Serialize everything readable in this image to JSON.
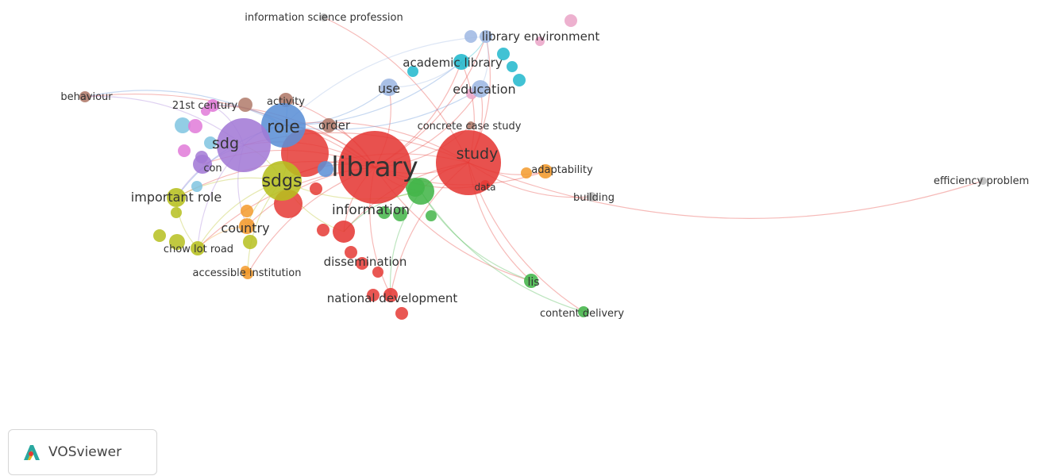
{
  "network": {
    "colors": {
      "red": "#e53935",
      "green": "#43b549",
      "blue": "#5b8fd6",
      "purple": "#a37ad6",
      "yellow": "#b6bf1f",
      "cyan": "#20b7cc",
      "orange": "#f39a2b",
      "pink": "#e07ad8",
      "brown": "#b07a6a",
      "skyblue": "#7fc4e0",
      "lightpink": "#eaa3c7",
      "lightblue": "#9db7e3",
      "grey": "#bbbbbb"
    },
    "nodes": [
      {
        "id": "library",
        "label": "library",
        "color": "red",
        "weight": 10,
        "font": 34
      },
      {
        "id": "study",
        "label": "study",
        "color": "red",
        "weight": 8,
        "font": 19
      },
      {
        "id": "sdgs",
        "label": "sdgs",
        "color": "yellow",
        "weight": 6,
        "font": 22
      },
      {
        "id": "role",
        "label": "role",
        "color": "blue",
        "weight": 6,
        "font": 22
      },
      {
        "id": "sdg",
        "label": "sdg",
        "color": "purple",
        "weight": 6,
        "font": 19
      },
      {
        "id": "information",
        "label": "information",
        "color": "green",
        "weight": 5,
        "font": 17
      },
      {
        "id": "important-role",
        "label": "important role",
        "color": "yellow",
        "weight": 3,
        "font": 16
      },
      {
        "id": "country",
        "label": "country",
        "color": "orange",
        "weight": 3,
        "font": 16
      },
      {
        "id": "education",
        "label": "education",
        "color": "lightblue",
        "weight": 3,
        "font": 16
      },
      {
        "id": "use",
        "label": "use",
        "color": "lightblue",
        "weight": 3,
        "font": 16
      },
      {
        "id": "dissemination",
        "label": "dissemination",
        "color": "red",
        "weight": 2,
        "font": 15
      },
      {
        "id": "national-development",
        "label": "national development",
        "color": "red",
        "weight": 2,
        "font": 15
      },
      {
        "id": "academic-library",
        "label": "academic library",
        "color": "cyan",
        "weight": 2,
        "font": 15
      },
      {
        "id": "library-environment",
        "label": "library environment",
        "color": "lightblue",
        "weight": 2,
        "font": 15
      },
      {
        "id": "concrete-case-study",
        "label": "concrete case study",
        "color": "brown",
        "weight": 1,
        "font": 13
      },
      {
        "id": "order",
        "label": "order",
        "color": "brown",
        "weight": 2,
        "font": 15
      },
      {
        "id": "activity",
        "label": "activity",
        "color": "brown",
        "weight": 2,
        "font": 13
      },
      {
        "id": "21st-century",
        "label": "21st century",
        "color": "pink",
        "weight": 2,
        "font": 13
      },
      {
        "id": "behaviour",
        "label": "behaviour",
        "color": "brown",
        "weight": 1,
        "font": 13
      },
      {
        "id": "information-science-profession",
        "label": "information science profession",
        "color": "grey",
        "weight": 1,
        "font": 13
      },
      {
        "id": "adaptability",
        "label": "adaptability",
        "color": "orange",
        "weight": 2,
        "font": 13
      },
      {
        "id": "building",
        "label": "building",
        "color": "grey",
        "weight": 1,
        "font": 13
      },
      {
        "id": "data",
        "label": "data",
        "color": "red",
        "weight": 1,
        "font": 12
      },
      {
        "id": "efficiency-problem",
        "label": "efficiency problem",
        "color": "grey",
        "weight": 1,
        "font": 13
      },
      {
        "id": "lis",
        "label": "lis",
        "color": "green",
        "weight": 2,
        "font": 14
      },
      {
        "id": "content-delivery",
        "label": "content delivery",
        "color": "green",
        "weight": 1,
        "font": 13
      },
      {
        "id": "chow-lot-road",
        "label": "chow lot road",
        "color": "yellow",
        "weight": 2,
        "font": 13
      },
      {
        "id": "accessible-institution",
        "label": "accessible institution",
        "color": "orange",
        "weight": 1,
        "font": 13
      },
      {
        "id": "con",
        "label": "con",
        "color": "purple",
        "weight": 2,
        "font": 13
      }
    ],
    "extras": [
      {
        "color": "red"
      },
      {
        "color": "red"
      },
      {
        "color": "red"
      },
      {
        "color": "red"
      },
      {
        "color": "red"
      },
      {
        "color": "red"
      },
      {
        "color": "red"
      },
      {
        "color": "red"
      },
      {
        "color": "red"
      },
      {
        "color": "green"
      },
      {
        "color": "green"
      },
      {
        "color": "green"
      },
      {
        "color": "green"
      },
      {
        "color": "cyan"
      },
      {
        "color": "cyan"
      },
      {
        "color": "cyan"
      },
      {
        "color": "cyan"
      },
      {
        "color": "skyblue"
      },
      {
        "color": "skyblue"
      },
      {
        "color": "skyblue"
      },
      {
        "color": "pink"
      },
      {
        "color": "pink"
      },
      {
        "color": "pink"
      },
      {
        "color": "yellow"
      },
      {
        "color": "yellow"
      },
      {
        "color": "yellow"
      },
      {
        "color": "yellow"
      },
      {
        "color": "orange"
      },
      {
        "color": "orange"
      },
      {
        "color": "orange"
      },
      {
        "color": "lightpink"
      },
      {
        "color": "lightpink"
      },
      {
        "color": "lightpink"
      },
      {
        "color": "purple"
      },
      {
        "color": "blue"
      },
      {
        "color": "brown"
      },
      {
        "color": "lightblue"
      }
    ],
    "edges": [
      [
        "library",
        "study"
      ],
      [
        "library",
        "sdgs"
      ],
      [
        "library",
        "role"
      ],
      [
        "library",
        "sdg"
      ],
      [
        "library",
        "information"
      ],
      [
        "library",
        "important-role"
      ],
      [
        "library",
        "country"
      ],
      [
        "library",
        "education"
      ],
      [
        "library",
        "use"
      ],
      [
        "library",
        "dissemination"
      ],
      [
        "library",
        "national-development"
      ],
      [
        "library",
        "academic-library"
      ],
      [
        "library",
        "library-environment"
      ],
      [
        "library",
        "order"
      ],
      [
        "library",
        "activity"
      ],
      [
        "library",
        "21st-century"
      ],
      [
        "library",
        "behaviour"
      ],
      [
        "library",
        "adaptability"
      ],
      [
        "library",
        "data"
      ],
      [
        "library",
        "lis"
      ],
      [
        "library",
        "chow-lot-road"
      ],
      [
        "library",
        "accessible-institution"
      ],
      [
        "library",
        "con"
      ],
      [
        "library",
        "concrete-case-study"
      ],
      [
        "study",
        "sdgs"
      ],
      [
        "study",
        "role"
      ],
      [
        "study",
        "sdg"
      ],
      [
        "study",
        "efficiency-problem"
      ],
      [
        "study",
        "adaptability"
      ],
      [
        "study",
        "building"
      ],
      [
        "study",
        "lis"
      ],
      [
        "study",
        "content-delivery"
      ],
      [
        "study",
        "education"
      ],
      [
        "study",
        "academic-library"
      ],
      [
        "study",
        "library-environment"
      ],
      [
        "study",
        "information-science-profession"
      ],
      [
        "study",
        "national-development"
      ],
      [
        "study",
        "dissemination"
      ],
      [
        "study",
        "information"
      ],
      [
        "sdgs",
        "role"
      ],
      [
        "sdgs",
        "sdg"
      ],
      [
        "sdgs",
        "information"
      ],
      [
        "sdgs",
        "important-role"
      ],
      [
        "sdgs",
        "country"
      ],
      [
        "sdgs",
        "chow-lot-road"
      ],
      [
        "sdgs",
        "accessible-institution"
      ],
      [
        "sdgs",
        "dissemination"
      ],
      [
        "role",
        "sdg"
      ],
      [
        "role",
        "use"
      ],
      [
        "role",
        "education"
      ],
      [
        "role",
        "academic-library"
      ],
      [
        "role",
        "activity"
      ],
      [
        "role",
        "behaviour"
      ],
      [
        "role",
        "21st-century"
      ],
      [
        "role",
        "important-role"
      ],
      [
        "sdg",
        "important-role"
      ],
      [
        "sdg",
        "chow-lot-road"
      ],
      [
        "sdg",
        "21st-century"
      ],
      [
        "sdg",
        "behaviour"
      ],
      [
        "sdg",
        "country"
      ],
      [
        "information",
        "lis"
      ],
      [
        "information",
        "content-delivery"
      ],
      [
        "information",
        "dissemination"
      ],
      [
        "information",
        "national-development"
      ],
      [
        "academic-library",
        "library-environment"
      ],
      [
        "use",
        "academic-library"
      ],
      [
        "education",
        "library-environment"
      ],
      [
        "country",
        "chow-lot-road"
      ],
      [
        "important-role",
        "chow-lot-road"
      ],
      [
        "library-environment",
        "role"
      ]
    ]
  },
  "logo": {
    "text": "VOSviewer"
  }
}
